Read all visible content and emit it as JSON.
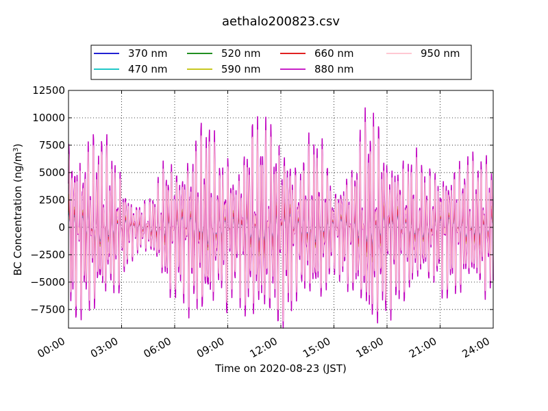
{
  "chart_data": {
    "type": "line",
    "title": "aethalo200823.csv",
    "xlabel": "Time on 2020-08-23 (JST)",
    "ylabel_main": "BC Concentration (ng/m",
    "ylabel_sup": "3",
    "ylabel_close": ")",
    "xlim": [
      0,
      24
    ],
    "ylim": [
      -9200,
      12500
    ],
    "x_ticks": [
      {
        "x": 0,
        "label": "00:00"
      },
      {
        "x": 3,
        "label": "03:00"
      },
      {
        "x": 6,
        "label": "06:00"
      },
      {
        "x": 9,
        "label": "09:00"
      },
      {
        "x": 12,
        "label": "12:00"
      },
      {
        "x": 15,
        "label": "15:00"
      },
      {
        "x": 18,
        "label": "18:00"
      },
      {
        "x": 21,
        "label": "21:00"
      },
      {
        "x": 24,
        "label": "24:00"
      }
    ],
    "y_ticks": [
      {
        "y": 12500,
        "label": "12500"
      },
      {
        "y": 10000,
        "label": "10000"
      },
      {
        "y": 7500,
        "label": "7500"
      },
      {
        "y": 5000,
        "label": "5000"
      },
      {
        "y": 2500,
        "label": "2500"
      },
      {
        "y": 0,
        "label": "0"
      },
      {
        "y": -2500,
        "label": "−2500"
      },
      {
        "y": -5000,
        "label": "−5000"
      },
      {
        "y": -7500,
        "label": "−7500"
      }
    ],
    "grid": true,
    "legend_position": "top-center",
    "series": [
      {
        "name": "370 nm",
        "color": "#0000cc",
        "scale": 0.28
      },
      {
        "name": "470 nm",
        "color": "#00bfbf",
        "scale": 0.3
      },
      {
        "name": "520 nm",
        "color": "#007f00",
        "scale": 0.36
      },
      {
        "name": "590 nm",
        "color": "#bfbf00",
        "scale": 0.4
      },
      {
        "name": "660 nm",
        "color": "#dd0000",
        "scale": 0.34
      },
      {
        "name": "880 nm",
        "color": "#bf00bf",
        "scale": 1.0
      },
      {
        "name": "950 nm",
        "color": "#ffc0cb",
        "scale": 0.88
      }
    ],
    "envelope_880nm": {
      "x": [
        0,
        0.5,
        1,
        1.5,
        2,
        2.5,
        3,
        3.5,
        4,
        4.5,
        5,
        5.5,
        6,
        6.5,
        7,
        7.5,
        8,
        8.5,
        9,
        9.5,
        10,
        10.5,
        11,
        11.5,
        12,
        12.5,
        13,
        13.5,
        14,
        14.5,
        15,
        15.5,
        16,
        16.5,
        17,
        17.5,
        18,
        18.5,
        19,
        19.5,
        20,
        20.5,
        21,
        21.5,
        22,
        22.5,
        23,
        23.5,
        24
      ],
      "amplitude": [
        10000,
        8000,
        8500,
        9000,
        8200,
        7500,
        5500,
        3000,
        2500,
        2500,
        4000,
        7000,
        6500,
        7000,
        8500,
        9500,
        10000,
        6500,
        8000,
        5500,
        9000,
        10000,
        10000,
        9500,
        9500,
        8500,
        6000,
        8000,
        8500,
        7500,
        4000,
        5500,
        6000,
        9000,
        11500,
        10000,
        8000,
        7500,
        7000,
        7000,
        6000,
        5500,
        6000,
        6500,
        6500,
        6500,
        6500,
        7000,
        7000
      ]
    },
    "sample_count": 1440
  }
}
